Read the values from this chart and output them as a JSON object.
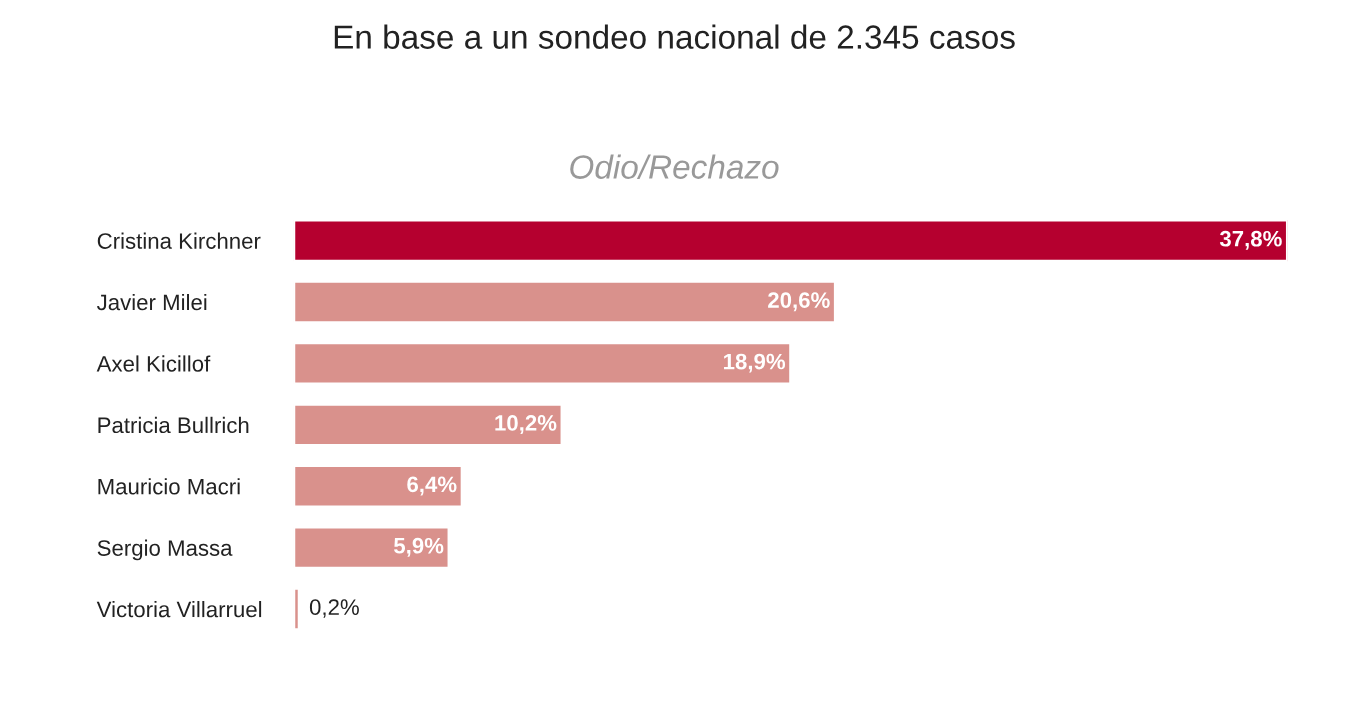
{
  "chart_data": {
    "type": "bar",
    "orientation": "horizontal",
    "title": "En base a un sondeo nacional de 2.345 casos",
    "subtitle": "Odio/Rechazo",
    "categories": [
      "Cristina Kirchner",
      "Javier Milei",
      "Axel Kicillof",
      "Patricia Bullrich",
      "Mauricio Macri",
      "Sergio Massa",
      "Victoria Villarruel"
    ],
    "values": [
      37.8,
      20.6,
      18.9,
      10.2,
      6.4,
      5.9,
      0.2
    ],
    "colors": [
      "#b5002f",
      "#d9918c",
      "#d9918c",
      "#d9918c",
      "#d9918c",
      "#d9918c",
      "#d9918c"
    ],
    "value_labels": [
      "37,8%",
      "20,6%",
      "18,9%",
      "10,2%",
      "6,4%",
      "5,9%",
      "0,2%"
    ],
    "tick_labels": "y",
    "grid": false,
    "legend": false
  }
}
